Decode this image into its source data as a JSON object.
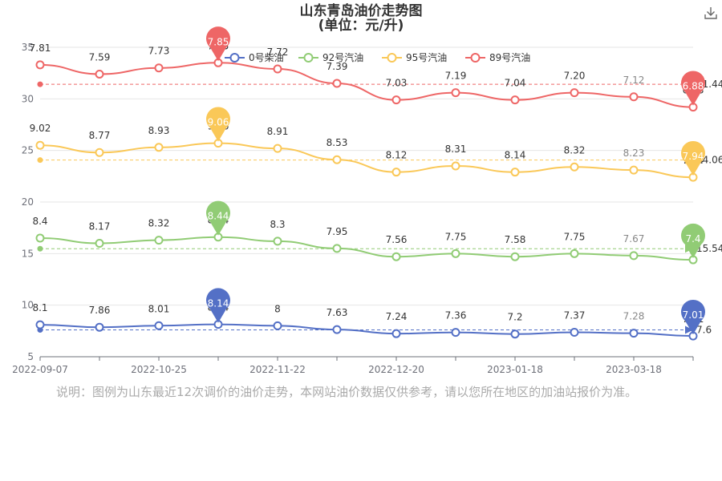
{
  "header": {
    "title": "山东青岛油价走势图",
    "subtitle": "(单位：元/升)"
  },
  "toolbox": {
    "download_icon": "download-icon"
  },
  "note": "说明：图例为山东最近12次调价的油价走势，本网站油价数据仅供参考，请以您所在地区的加油站报价为准。",
  "chart_data": {
    "type": "line",
    "title": "山东青岛油价走势图",
    "subtitle": "(单位：元/升)",
    "ylim": [
      5,
      35
    ],
    "yticks": [
      "5",
      "10",
      "15",
      "20",
      "25",
      "30",
      "35"
    ],
    "xticks": [
      "2022-09-07",
      "2022-10-25",
      "2022-11-22",
      "2022-12-20",
      "2023-01-18",
      "2023-03-18"
    ],
    "grid": true,
    "legend_position": "top",
    "series": [
      {
        "name": "0号柴油",
        "color": "#5470c6",
        "labels": [
          "8.1",
          "7.86",
          "8.01",
          "8.14",
          "8",
          "7.63",
          "7.24",
          "7.36",
          "7.2",
          "7.37",
          "7.28",
          "7.01"
        ],
        "values": [
          8.1,
          7.86,
          8.01,
          8.14,
          8.0,
          7.63,
          7.24,
          7.36,
          7.2,
          7.37,
          7.28,
          7.01
        ],
        "max_label": "8.14",
        "min_label": "7.01",
        "avg_label": "7.6"
      },
      {
        "name": "92号汽油",
        "color": "#91cc75",
        "labels": [
          "8.4",
          "8.17",
          "8.32",
          "8.44",
          "8.3",
          "7.95",
          "7.56",
          "7.75",
          "7.58",
          "7.75",
          "7.67",
          "7.4"
        ],
        "values": [
          16.5,
          16.0,
          16.3,
          16.6,
          16.2,
          15.5,
          14.7,
          15.0,
          14.7,
          15.0,
          14.8,
          14.4
        ],
        "max_label": "8.44",
        "min_label": "7.4",
        "avg_label": "15.54"
      },
      {
        "name": "95号汽油",
        "color": "#fac858",
        "labels": [
          "9.02",
          "8.77",
          "8.93",
          "9.06",
          "8.91",
          "8.53",
          "8.12",
          "8.31",
          "8.14",
          "8.32",
          "8.23",
          "7.94"
        ],
        "values": [
          25.5,
          24.8,
          25.3,
          25.7,
          25.2,
          24.1,
          22.9,
          23.5,
          22.9,
          23.4,
          23.1,
          22.4
        ],
        "max_label": "9.06",
        "min_label": "7.94",
        "avg_label": "24.06"
      },
      {
        "name": "89号汽油",
        "color": "#ee6666",
        "labels": [
          "7.81",
          "7.59",
          "7.73",
          "7.85",
          "7.72",
          "7.39",
          "7.03",
          "7.19",
          "7.04",
          "7.20",
          "7.12",
          "6.88"
        ],
        "values": [
          33.3,
          32.4,
          33.0,
          33.5,
          32.9,
          31.5,
          29.9,
          30.6,
          29.9,
          30.6,
          30.2,
          29.2
        ],
        "max_label": "7.85",
        "min_label": "6.88",
        "avg_label": "31.44"
      }
    ]
  }
}
